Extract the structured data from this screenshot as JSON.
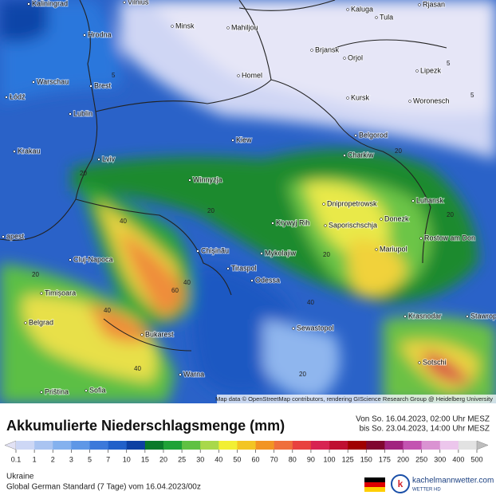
{
  "map": {
    "cities": [
      "Kaliningrad",
      "Vilnius",
      "Kaluga",
      "Tula",
      "Rjasan",
      "Minsk",
      "Mahiljou",
      "Hrodna",
      "Brjansk",
      "Orjol",
      "Lipezk",
      "Homel",
      "Warschau",
      "Brest",
      "Kursk",
      "Woronesch",
      "Łódź",
      "Lublin",
      "Belgorod",
      "Kiew",
      "Krakau",
      "Charkiw",
      "Lviv",
      "Winnyzja",
      "Dnipropetrowsk",
      "Luhansk",
      "Donezk",
      "Krywyj Rih",
      "Saporischschja",
      "Rostow am Don",
      "apest",
      "Chișinău",
      "Mariupol",
      "Cluj-Napoca",
      "Mykolajiw",
      "Tiraspol",
      "Odessa",
      "Timișoara",
      "Krasnodar",
      "Stawropol",
      "Belgrad",
      "Sewastopol",
      "Bukarest",
      "Sotschi",
      "Warna",
      "Priština",
      "Sofia"
    ],
    "contour_labels": [
      5,
      5,
      20,
      20,
      40,
      60,
      40,
      40,
      20,
      20,
      40,
      20,
      20,
      40,
      20,
      5
    ],
    "attribution": "Map data © OpenStreetMap contributors, rendering GIScience Research Group @ Heidelberg University"
  },
  "legend": {
    "title": "Akkumulierte Niederschlagsmenge (mm)",
    "period": [
      "Von So. 16.04.2023, 02:00 Uhr MESZ",
      "bis So. 23.04.2023, 14:00 Uhr MESZ"
    ],
    "ticks": [
      0.1,
      1,
      2,
      3,
      5,
      7,
      10,
      15,
      20,
      25,
      30,
      40,
      50,
      60,
      70,
      80,
      90,
      100,
      125,
      150,
      175,
      200,
      250,
      300,
      400,
      500
    ],
    "colors": [
      "#cdd7f5",
      "#aac4f1",
      "#84b1ee",
      "#5e97e6",
      "#3c79da",
      "#2160c9",
      "#0d40a2",
      "#0a7a2a",
      "#1ea236",
      "#5fc142",
      "#a9d84a",
      "#f2ef33",
      "#f3c523",
      "#f29423",
      "#ef6f3c",
      "#e8413f",
      "#d72352",
      "#bf0f31",
      "#a00000",
      "#80062f",
      "#a1237f",
      "#c353b1",
      "#da93d2",
      "#ecc6ec",
      "#e2e2e2"
    ],
    "low_color": "#e2e2f5",
    "high_color": "#bdbdbd"
  },
  "footer": {
    "region": "Ukraine",
    "model": "Global German Standard (7 Tage) vom 16.04.2023/00z",
    "brand": "kachelmannwetter.com",
    "brand_sub": "WETTER HD"
  }
}
